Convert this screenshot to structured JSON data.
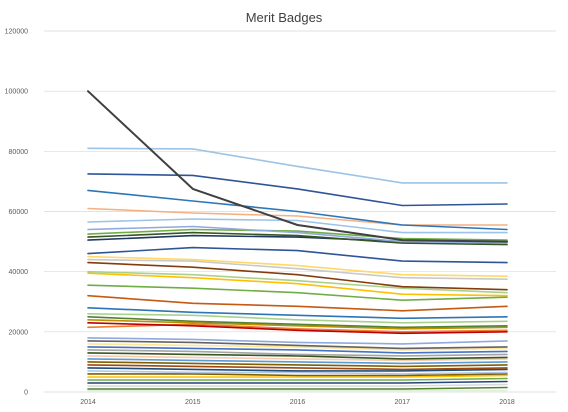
{
  "chart_data": {
    "type": "line",
    "title": "Merit Badges",
    "xlabel": "",
    "ylabel": "",
    "x": [
      "2014",
      "2015",
      "2016",
      "2017",
      "2018"
    ],
    "ylim": [
      0,
      120000
    ],
    "y_ticks": [
      "0",
      "20000",
      "40000",
      "60000",
      "80000",
      "100000",
      "120000"
    ],
    "grid": true,
    "legend": "none",
    "series": [
      {
        "color": "#404040",
        "values": [
          100000,
          67500,
          55500,
          50500,
          50000
        ]
      },
      {
        "color": "#9dc3e6",
        "values": [
          81000,
          80800,
          75000,
          69500,
          69500
        ]
      },
      {
        "color": "#2f5597",
        "values": [
          72500,
          72000,
          67500,
          62000,
          62500
        ]
      },
      {
        "color": "#2e75b6",
        "values": [
          67000,
          63500,
          60000,
          55500,
          54000
        ]
      },
      {
        "color": "#f4b183",
        "values": [
          61000,
          59500,
          58500,
          55500,
          55500
        ]
      },
      {
        "color": "#9dc3e6",
        "values": [
          56500,
          57500,
          57000,
          53000,
          53000
        ]
      },
      {
        "color": "#8faadc",
        "values": [
          54000,
          55000,
          53000,
          50000,
          49500
        ]
      },
      {
        "color": "#375623",
        "values": [
          51500,
          53000,
          52000,
          49500,
          49000
        ]
      },
      {
        "color": "#1f3864",
        "values": [
          50500,
          52000,
          51500,
          50000,
          50000
        ]
      },
      {
        "color": "#70ad47",
        "values": [
          52500,
          54000,
          53500,
          51000,
          50500
        ]
      },
      {
        "color": "#2f5597",
        "values": [
          46000,
          48000,
          47000,
          43500,
          43000
        ]
      },
      {
        "color": "#ffd966",
        "values": [
          45000,
          44000,
          42000,
          39000,
          38500
        ]
      },
      {
        "color": "#c9c9c9",
        "values": [
          44000,
          43500,
          41000,
          38000,
          37500
        ]
      },
      {
        "color": "#843c0c",
        "values": [
          43000,
          41500,
          39000,
          35000,
          34000
        ]
      },
      {
        "color": "#a9d18e",
        "values": [
          40000,
          39000,
          37000,
          34500,
          33000
        ]
      },
      {
        "color": "#ffc000",
        "values": [
          39500,
          38000,
          36000,
          32500,
          32000
        ]
      },
      {
        "color": "#70ad47",
        "values": [
          35500,
          34500,
          33000,
          30500,
          31500
        ]
      },
      {
        "color": "#c55a11",
        "values": [
          32000,
          29500,
          28500,
          27000,
          28500
        ]
      },
      {
        "color": "#2e75b6",
        "values": [
          28000,
          26500,
          25500,
          24500,
          25000
        ]
      },
      {
        "color": "#a9d18e",
        "values": [
          26000,
          25500,
          24000,
          23000,
          23500
        ]
      },
      {
        "color": "#548235",
        "values": [
          25000,
          23500,
          22500,
          21500,
          22000
        ]
      },
      {
        "color": "#bf9000",
        "values": [
          24000,
          23000,
          22000,
          21000,
          21500
        ]
      },
      {
        "color": "#c00000",
        "values": [
          23000,
          22000,
          20500,
          19500,
          20000
        ]
      },
      {
        "color": "#ed7d31",
        "values": [
          21500,
          22500,
          21000,
          20000,
          20500
        ]
      },
      {
        "color": "#8faadc",
        "values": [
          18000,
          17500,
          16500,
          16000,
          17000
        ]
      },
      {
        "color": "#636363",
        "values": [
          17000,
          16500,
          15500,
          14500,
          15000
        ]
      },
      {
        "color": "#ffe699",
        "values": [
          16000,
          15500,
          15000,
          14000,
          14500
        ]
      },
      {
        "color": "#4472c4",
        "values": [
          15000,
          14500,
          14000,
          13000,
          13500
        ]
      },
      {
        "color": "#a5a5a5",
        "values": [
          14000,
          13500,
          12500,
          12000,
          12500
        ]
      },
      {
        "color": "#385723",
        "values": [
          13000,
          12500,
          12000,
          11000,
          11500
        ]
      },
      {
        "color": "#f8cbad",
        "values": [
          12000,
          11500,
          11000,
          10500,
          11000
        ]
      },
      {
        "color": "#5b9bd5",
        "values": [
          11000,
          10500,
          10000,
          9500,
          10000
        ]
      },
      {
        "color": "#806000",
        "values": [
          10000,
          9500,
          9000,
          8500,
          9000
        ]
      },
      {
        "color": "#9e480e",
        "values": [
          9000,
          8500,
          8000,
          7500,
          8000
        ]
      },
      {
        "color": "#1f4e79",
        "values": [
          8000,
          7500,
          7000,
          7000,
          7500
        ]
      },
      {
        "color": "#b4c7e7",
        "values": [
          7000,
          6500,
          6500,
          6000,
          6500
        ]
      },
      {
        "color": "#7f6000",
        "values": [
          6000,
          6000,
          5500,
          5500,
          6000
        ]
      },
      {
        "color": "#ffc000",
        "values": [
          5000,
          5000,
          5000,
          5000,
          5500
        ]
      },
      {
        "color": "#70ad47",
        "values": [
          4000,
          4000,
          4000,
          4000,
          4500
        ]
      },
      {
        "color": "#264478",
        "values": [
          3000,
          3000,
          3000,
          3000,
          3500
        ]
      },
      {
        "color": "#d9d9d9",
        "values": [
          2000,
          2000,
          2000,
          2000,
          2500
        ]
      },
      {
        "color": "#548235",
        "values": [
          1000,
          1000,
          1000,
          1000,
          1500
        ]
      },
      {
        "color": "#e2f0d9",
        "values": [
          500,
          500,
          500,
          500,
          500
        ]
      }
    ]
  }
}
